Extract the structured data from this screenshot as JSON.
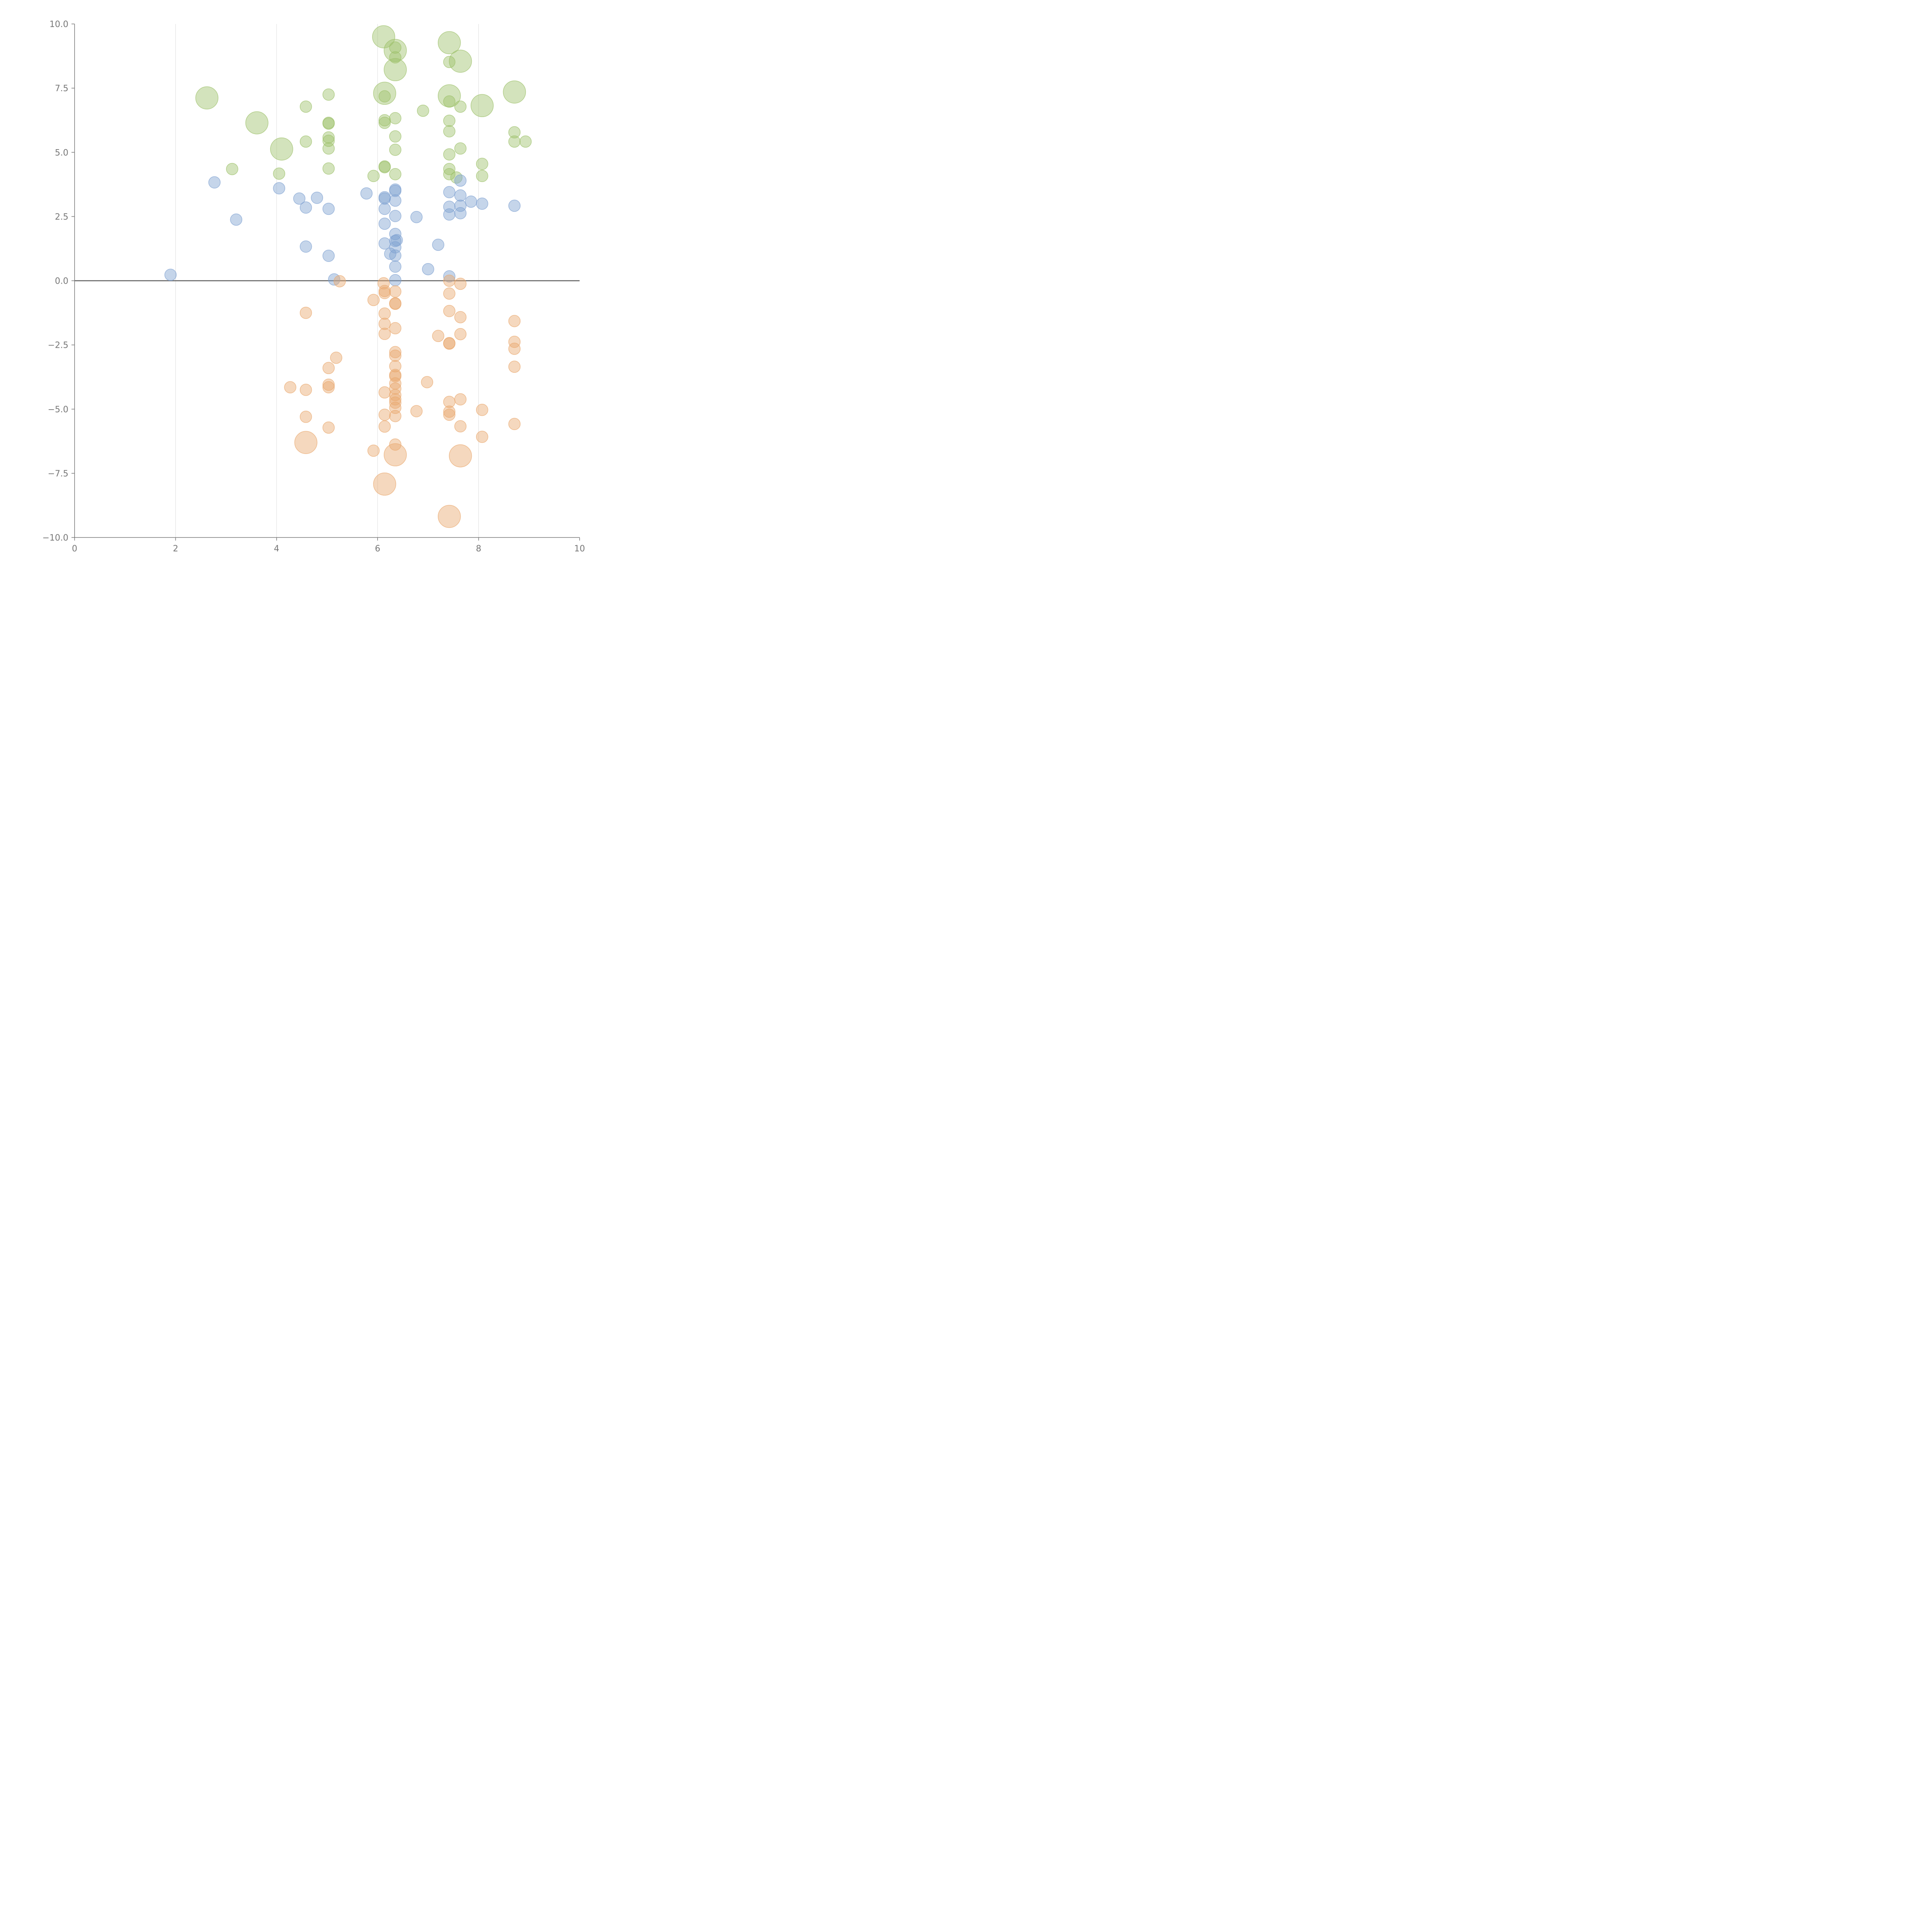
{
  "chart_data": {
    "type": "scatter",
    "title": "",
    "xlabel": "",
    "ylabel": "",
    "xlim": [
      0,
      10
    ],
    "ylim": [
      -10,
      10
    ],
    "x_ticks": [
      0,
      2,
      4,
      6,
      8,
      10
    ],
    "x_tick_labels": [
      "0",
      "2",
      "4",
      "6",
      "8",
      "10"
    ],
    "y_ticks": [
      10,
      7.5,
      5,
      2.5,
      0,
      -2.5,
      -5,
      -7.5,
      -10
    ],
    "y_tick_labels": [
      "10.0",
      "7.5",
      "5.0",
      "2.5",
      "0.0",
      "−2.5",
      "−5.0",
      "−7.5",
      "−10.0"
    ],
    "grid_x": true,
    "grid_y": false,
    "zero_line": true,
    "legend": "none",
    "series": [
      {
        "name": "green",
        "color": "#9dc16a",
        "points": [
          [
            6.12,
            9.5,
            2
          ],
          [
            7.42,
            9.27,
            2
          ],
          [
            6.35,
            8.97,
            2
          ],
          [
            6.35,
            9.08,
            1
          ],
          [
            6.35,
            8.7,
            1
          ],
          [
            7.42,
            8.52,
            1
          ],
          [
            7.64,
            8.55,
            2
          ],
          [
            6.35,
            8.22,
            2
          ],
          [
            2.62,
            7.12,
            2
          ],
          [
            6.14,
            7.3,
            2
          ],
          [
            6.14,
            7.18,
            1
          ],
          [
            5.03,
            7.25,
            1
          ],
          [
            7.42,
            7.2,
            2
          ],
          [
            7.42,
            6.98,
            1
          ],
          [
            7.64,
            6.78,
            1
          ],
          [
            8.07,
            6.82,
            2
          ],
          [
            8.71,
            7.35,
            2
          ],
          [
            4.58,
            6.78,
            1
          ],
          [
            6.9,
            6.62,
            1
          ],
          [
            3.61,
            6.15,
            2
          ],
          [
            5.03,
            6.15,
            1
          ],
          [
            5.03,
            6.12,
            1
          ],
          [
            6.14,
            6.25,
            1
          ],
          [
            6.14,
            6.15,
            1
          ],
          [
            6.35,
            6.33,
            1
          ],
          [
            7.42,
            6.23,
            1
          ],
          [
            4.1,
            5.13,
            2
          ],
          [
            4.58,
            5.42,
            1
          ],
          [
            5.03,
            5.58,
            1
          ],
          [
            5.03,
            5.45,
            1
          ],
          [
            5.03,
            5.15,
            1
          ],
          [
            6.35,
            5.62,
            1
          ],
          [
            6.35,
            5.1,
            1
          ],
          [
            7.42,
            5.82,
            1
          ],
          [
            7.64,
            5.15,
            1
          ],
          [
            8.71,
            5.78,
            1
          ],
          [
            8.71,
            5.42,
            1
          ],
          [
            8.93,
            5.42,
            1
          ],
          [
            3.12,
            4.35,
            1
          ],
          [
            4.05,
            4.17,
            1
          ],
          [
            5.03,
            4.37,
            1
          ],
          [
            5.92,
            4.08,
            1
          ],
          [
            6.14,
            4.45,
            1
          ],
          [
            6.14,
            4.42,
            1
          ],
          [
            6.35,
            4.15,
            1
          ],
          [
            7.42,
            4.92,
            1
          ],
          [
            7.42,
            4.35,
            1
          ],
          [
            7.42,
            4.15,
            1
          ],
          [
            7.56,
            4.02,
            1
          ],
          [
            8.07,
            4.55,
            1
          ],
          [
            8.07,
            4.08,
            1
          ]
        ]
      },
      {
        "name": "blue",
        "color": "#7fa1d1",
        "points": [
          [
            2.77,
            3.83,
            1
          ],
          [
            4.05,
            3.6,
            1
          ],
          [
            4.45,
            3.2,
            1
          ],
          [
            4.8,
            3.23,
            1
          ],
          [
            4.58,
            2.85,
            1
          ],
          [
            5.03,
            2.8,
            1
          ],
          [
            3.2,
            2.38,
            1
          ],
          [
            5.78,
            3.4,
            1
          ],
          [
            6.14,
            3.25,
            1
          ],
          [
            6.14,
            3.2,
            1
          ],
          [
            6.14,
            2.8,
            1
          ],
          [
            6.14,
            2.22,
            1
          ],
          [
            6.35,
            3.55,
            1
          ],
          [
            6.35,
            3.5,
            1
          ],
          [
            6.35,
            3.12,
            1
          ],
          [
            6.35,
            2.52,
            1
          ],
          [
            6.77,
            2.48,
            1
          ],
          [
            7.42,
            3.45,
            1
          ],
          [
            7.42,
            2.88,
            1
          ],
          [
            7.42,
            2.58,
            1
          ],
          [
            7.64,
            3.9,
            1
          ],
          [
            7.64,
            3.32,
            1
          ],
          [
            7.64,
            2.92,
            1
          ],
          [
            7.64,
            2.63,
            1
          ],
          [
            7.85,
            3.08,
            1
          ],
          [
            8.07,
            3.0,
            1
          ],
          [
            8.71,
            2.92,
            1
          ],
          [
            4.58,
            1.33,
            1
          ],
          [
            5.03,
            0.97,
            1
          ],
          [
            6.14,
            1.45,
            1
          ],
          [
            6.25,
            1.05,
            1
          ],
          [
            6.35,
            1.82,
            1
          ],
          [
            6.35,
            1.55,
            1
          ],
          [
            6.38,
            1.58,
            1
          ],
          [
            6.35,
            1.3,
            1
          ],
          [
            6.35,
            0.98,
            1
          ],
          [
            6.35,
            0.55,
            1
          ],
          [
            7.2,
            1.4,
            1
          ],
          [
            7.0,
            0.45,
            1
          ],
          [
            1.9,
            0.23,
            1
          ],
          [
            5.14,
            0.05,
            1
          ],
          [
            6.35,
            0.02,
            1
          ],
          [
            7.42,
            0.17,
            1
          ]
        ]
      },
      {
        "name": "orange",
        "color": "#e9a86e",
        "points": [
          [
            5.25,
            -0.02,
            1
          ],
          [
            6.12,
            -0.1,
            1
          ],
          [
            6.14,
            -0.4,
            1
          ],
          [
            6.14,
            -0.48,
            1
          ],
          [
            6.35,
            -0.42,
            1
          ],
          [
            5.92,
            -0.75,
            1
          ],
          [
            6.35,
            -0.88,
            1
          ],
          [
            6.35,
            -0.9,
            1
          ],
          [
            7.42,
            0.0,
            1
          ],
          [
            7.42,
            -0.5,
            1
          ],
          [
            7.64,
            -0.12,
            1
          ],
          [
            4.58,
            -1.25,
            1
          ],
          [
            6.14,
            -1.28,
            1
          ],
          [
            6.14,
            -1.68,
            1
          ],
          [
            6.14,
            -2.07,
            1
          ],
          [
            6.35,
            -1.85,
            1
          ],
          [
            7.42,
            -1.18,
            1
          ],
          [
            7.64,
            -1.42,
            1
          ],
          [
            7.64,
            -2.08,
            1
          ],
          [
            7.2,
            -2.15,
            1
          ],
          [
            7.42,
            -2.43,
            1
          ],
          [
            7.42,
            -2.45,
            1
          ],
          [
            8.71,
            -1.57,
            1
          ],
          [
            8.71,
            -2.38,
            1
          ],
          [
            8.71,
            -2.65,
            1
          ],
          [
            8.71,
            -3.35,
            1
          ],
          [
            5.18,
            -3.0,
            1
          ],
          [
            5.03,
            -3.4,
            1
          ],
          [
            6.35,
            -2.78,
            1
          ],
          [
            6.35,
            -2.92,
            1
          ],
          [
            6.35,
            -3.33,
            1
          ],
          [
            6.35,
            -3.67,
            1
          ],
          [
            6.35,
            -3.72,
            1
          ],
          [
            6.35,
            -4.0,
            1
          ],
          [
            6.35,
            -4.2,
            1
          ],
          [
            6.35,
            -4.45,
            1
          ],
          [
            6.35,
            -4.62,
            1
          ],
          [
            6.35,
            -4.75,
            1
          ],
          [
            6.35,
            -4.95,
            1
          ],
          [
            6.35,
            -5.27,
            1
          ],
          [
            4.27,
            -4.15,
            1
          ],
          [
            4.58,
            -4.25,
            1
          ],
          [
            5.03,
            -4.05,
            1
          ],
          [
            5.03,
            -4.15,
            1
          ],
          [
            6.14,
            -4.35,
            1
          ],
          [
            6.98,
            -3.95,
            1
          ],
          [
            6.77,
            -5.08,
            1
          ],
          [
            7.42,
            -4.72,
            1
          ],
          [
            7.42,
            -5.1,
            1
          ],
          [
            7.42,
            -5.22,
            1
          ],
          [
            7.64,
            -4.62,
            1
          ],
          [
            8.07,
            -5.03,
            1
          ],
          [
            4.58,
            -5.3,
            1
          ],
          [
            5.03,
            -5.72,
            1
          ],
          [
            6.14,
            -5.22,
            1
          ],
          [
            6.14,
            -5.68,
            1
          ],
          [
            7.64,
            -5.67,
            1
          ],
          [
            8.07,
            -6.08,
            1
          ],
          [
            8.71,
            -5.58,
            1
          ],
          [
            4.58,
            -6.3,
            2
          ],
          [
            5.92,
            -6.62,
            1
          ],
          [
            6.35,
            -6.38,
            1
          ],
          [
            6.35,
            -6.78,
            2
          ],
          [
            7.64,
            -6.82,
            2
          ],
          [
            6.14,
            -7.92,
            2
          ],
          [
            7.42,
            -9.18,
            2
          ]
        ]
      }
    ]
  }
}
